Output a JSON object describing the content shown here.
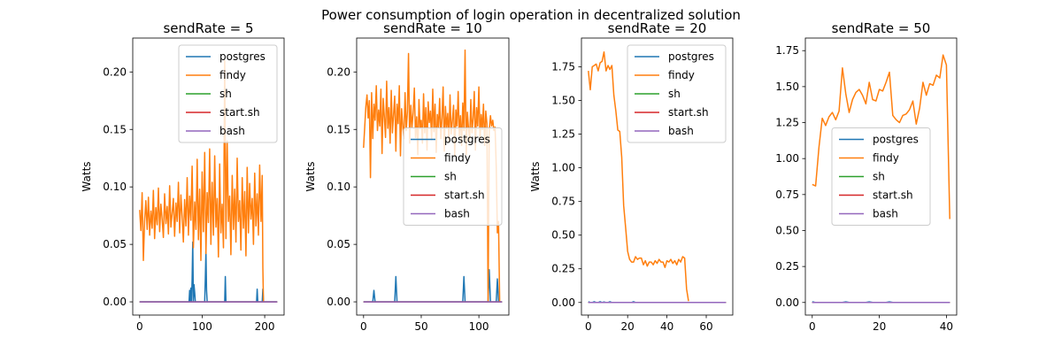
{
  "figure": {
    "suptitle": "Power consumption of login operation in decentralized solution"
  },
  "colors": {
    "postgres": "#1f77b4",
    "findy": "#ff7f0e",
    "sh": "#2ca02c",
    "start.sh": "#d62728",
    "bash": "#9467bd"
  },
  "chart_data": [
    {
      "type": "line",
      "title": "sendRate = 5",
      "xlabel": "",
      "ylabel": "Watts",
      "xlim": [
        -11,
        231
      ],
      "ylim": [
        -0.0115,
        0.2295
      ],
      "xticks": [
        0,
        100,
        200
      ],
      "yticks": [
        0.0,
        0.05,
        0.1,
        0.15,
        0.2
      ],
      "ytick_format": "2",
      "legend": {
        "placement": "upper right",
        "entries": [
          "postgres",
          "findy",
          "sh",
          "start.sh",
          "bash"
        ]
      },
      "series": [
        {
          "name": "postgres",
          "x": [
            0,
            79,
            80,
            81,
            82,
            83,
            84,
            85,
            86,
            87,
            88,
            89,
            104,
            105,
            106,
            107,
            108,
            136,
            137,
            138,
            187,
            188,
            189,
            196,
            197,
            198,
            199,
            220
          ],
          "y": [
            0,
            0,
            0.01,
            0,
            0.012,
            0,
            0.02,
            0.052,
            0,
            0.015,
            0.008,
            0,
            0,
            0.02,
            0.044,
            0.01,
            0,
            0,
            0.022,
            0,
            0,
            0.011,
            0,
            0,
            0.011,
            0,
            0,
            0
          ]
        },
        {
          "name": "findy",
          "x": [
            0,
            2,
            4,
            6,
            8,
            10,
            12,
            14,
            16,
            18,
            20,
            22,
            24,
            26,
            28,
            30,
            32,
            34,
            36,
            38,
            40,
            42,
            44,
            46,
            48,
            50,
            52,
            54,
            56,
            58,
            60,
            62,
            64,
            66,
            68,
            70,
            72,
            74,
            76,
            78,
            80,
            82,
            84,
            86,
            88,
            90,
            92,
            94,
            96,
            98,
            100,
            102,
            104,
            106,
            108,
            110,
            112,
            114,
            116,
            118,
            120,
            122,
            124,
            126,
            128,
            130,
            132,
            134,
            136,
            138,
            140,
            142,
            144,
            146,
            148,
            150,
            152,
            154,
            156,
            158,
            160,
            162,
            164,
            166,
            168,
            170,
            172,
            174,
            176,
            178,
            180,
            182,
            184,
            186,
            188,
            190,
            192,
            194,
            196,
            197,
            198
          ],
          "y": [
            0.08,
            0.062,
            0.095,
            0.036,
            0.07,
            0.088,
            0.063,
            0.091,
            0.058,
            0.079,
            0.064,
            0.097,
            0.055,
            0.082,
            0.067,
            0.099,
            0.061,
            0.085,
            0.072,
            0.056,
            0.094,
            0.068,
            0.083,
            0.059,
            0.101,
            0.065,
            0.077,
            0.09,
            0.057,
            0.086,
            0.07,
            0.104,
            0.06,
            0.093,
            0.074,
            0.052,
            0.089,
            0.066,
            0.108,
            0.058,
            0.092,
            0.071,
            0.118,
            0.047,
            0.087,
            0.063,
            0.124,
            0.054,
            0.098,
            0.036,
            0.113,
            0.061,
            0.13,
            0.042,
            0.095,
            0.069,
            0.133,
            0.05,
            0.104,
            0.058,
            0.127,
            0.065,
            0.09,
            0.039,
            0.12,
            0.06,
            0.085,
            0.047,
            0.21,
            0.055,
            0.14,
            0.07,
            0.092,
            0.041,
            0.11,
            0.063,
            0.098,
            0.052,
            0.125,
            0.07,
            0.088,
            0.045,
            0.108,
            0.064,
            0.096,
            0.04,
            0.117,
            0.06,
            0.103,
            0.072,
            0.09,
            0.05,
            0.112,
            0.066,
            0.094,
            0.058,
            0.119,
            0.07,
            0.11,
            0.03,
            0
          ]
        },
        {
          "name": "sh",
          "x": [
            0,
            220
          ],
          "y": [
            0,
            0
          ]
        },
        {
          "name": "start.sh",
          "x": [
            0,
            220
          ],
          "y": [
            0,
            0
          ]
        },
        {
          "name": "bash",
          "x": [
            0,
            220
          ],
          "y": [
            0,
            0
          ]
        }
      ]
    },
    {
      "type": "line",
      "title": "sendRate = 10",
      "xlabel": "",
      "ylabel": "Watts",
      "xlim": [
        -6,
        126
      ],
      "ylim": [
        -0.0115,
        0.2295
      ],
      "xticks": [
        0,
        50,
        100
      ],
      "yticks": [
        0.0,
        0.05,
        0.1,
        0.15,
        0.2
      ],
      "ytick_format": "2",
      "legend": {
        "placement": "center right",
        "entries": [
          "postgres",
          "findy",
          "sh",
          "start.sh",
          "bash"
        ]
      },
      "series": [
        {
          "name": "postgres",
          "x": [
            0,
            8,
            9,
            10,
            27,
            28,
            29,
            86,
            87,
            88,
            108,
            109,
            110,
            115,
            116,
            117,
            120
          ],
          "y": [
            0,
            0,
            0.01,
            0,
            0,
            0.022,
            0,
            0,
            0.022,
            0,
            0,
            0.028,
            0,
            0,
            0.02,
            0,
            0
          ]
        },
        {
          "name": "findy",
          "x": [
            0,
            1,
            2,
            3,
            4,
            5,
            6,
            7,
            8,
            9,
            10,
            11,
            12,
            13,
            14,
            15,
            16,
            17,
            18,
            19,
            20,
            21,
            22,
            23,
            24,
            25,
            26,
            27,
            28,
            29,
            30,
            31,
            32,
            33,
            34,
            35,
            36,
            37,
            38,
            39,
            40,
            41,
            42,
            43,
            44,
            45,
            46,
            47,
            48,
            49,
            50,
            51,
            52,
            53,
            54,
            55,
            56,
            57,
            58,
            59,
            60,
            61,
            62,
            63,
            64,
            65,
            66,
            67,
            68,
            69,
            70,
            71,
            72,
            73,
            74,
            75,
            76,
            77,
            78,
            79,
            80,
            81,
            82,
            83,
            84,
            85,
            86,
            87,
            88,
            89,
            90,
            91,
            92,
            93,
            94,
            95,
            96,
            97,
            98,
            99,
            100,
            101,
            102,
            103,
            104,
            105,
            106,
            107,
            108,
            109,
            110,
            111,
            112,
            113,
            114,
            115,
            116,
            117,
            118
          ],
          "y": [
            0.134,
            0.152,
            0.17,
            0.18,
            0.16,
            0.175,
            0.108,
            0.182,
            0.142,
            0.172,
            0.158,
            0.188,
            0.149,
            0.167,
            0.153,
            0.185,
            0.129,
            0.177,
            0.161,
            0.143,
            0.192,
            0.151,
            0.169,
            0.138,
            0.184,
            0.147,
            0.163,
            0.179,
            0.131,
            0.172,
            0.155,
            0.188,
            0.127,
            0.168,
            0.153,
            0.142,
            0.182,
            0.149,
            0.165,
            0.216,
            0.138,
            0.171,
            0.152,
            0.164,
            0.186,
            0.143,
            0.161,
            0.128,
            0.176,
            0.151,
            0.158,
            0.138,
            0.181,
            0.147,
            0.169,
            0.132,
            0.174,
            0.156,
            0.166,
            0.141,
            0.185,
            0.148,
            0.172,
            0.13,
            0.163,
            0.152,
            0.177,
            0.142,
            0.16,
            0.187,
            0.131,
            0.17,
            0.151,
            0.164,
            0.14,
            0.18,
            0.146,
            0.158,
            0.171,
            0.127,
            0.167,
            0.153,
            0.183,
            0.144,
            0.162,
            0.136,
            0.173,
            0.149,
            0.219,
            0.128,
            0.165,
            0.151,
            0.14,
            0.176,
            0.147,
            0.16,
            0.183,
            0.132,
            0.169,
            0.153,
            0.187,
            0.141,
            0.163,
            0.15,
            0.172,
            0.136,
            0.166,
            0.155,
            0,
            0.149,
            0.162,
            0.153,
            0.158,
            0.149,
            0.152,
            0.118,
            0.06,
            0.07,
            0
          ]
        },
        {
          "name": "sh",
          "x": [
            0,
            120
          ],
          "y": [
            0,
            0
          ]
        },
        {
          "name": "start.sh",
          "x": [
            0,
            120
          ],
          "y": [
            0,
            0
          ]
        },
        {
          "name": "bash",
          "x": [
            0,
            120
          ],
          "y": [
            0,
            0
          ]
        }
      ]
    },
    {
      "type": "line",
      "title": "sendRate = 20",
      "xlabel": "",
      "ylabel": "Watts",
      "xlim": [
        -3.5,
        73.5
      ],
      "ylim": [
        -0.0935,
        1.9635
      ],
      "xticks": [
        0,
        20,
        40,
        60
      ],
      "yticks": [
        0.0,
        0.25,
        0.5,
        0.75,
        1.0,
        1.25,
        1.5,
        1.75
      ],
      "ytick_format": "2",
      "legend": {
        "placement": "upper right",
        "entries": [
          "postgres",
          "findy",
          "sh",
          "start.sh",
          "bash"
        ]
      },
      "series": [
        {
          "name": "postgres",
          "x": [
            0,
            1,
            2,
            3,
            4,
            5,
            6,
            7,
            8,
            9,
            10,
            11,
            12,
            13,
            14,
            22,
            23,
            24,
            25,
            70
          ],
          "y": [
            0.005,
            0,
            0,
            0.005,
            0,
            0,
            0.006,
            0,
            0.004,
            0,
            0,
            0.005,
            0,
            0,
            0,
            0,
            0.006,
            0,
            0,
            0
          ]
        },
        {
          "name": "findy",
          "x": [
            0,
            1,
            2,
            3,
            4,
            5,
            6,
            7,
            8,
            9,
            10,
            11,
            12,
            13,
            14,
            15,
            16,
            17,
            18,
            19,
            20,
            21,
            22,
            23,
            24,
            25,
            26,
            27,
            28,
            29,
            30,
            31,
            32,
            33,
            34,
            35,
            36,
            37,
            38,
            39,
            40,
            41,
            42,
            43,
            44,
            45,
            46,
            47,
            48,
            49,
            50,
            51
          ],
          "y": [
            1.72,
            1.58,
            1.75,
            1.76,
            1.77,
            1.72,
            1.78,
            1.79,
            1.86,
            1.72,
            1.76,
            1.73,
            1.76,
            1.54,
            1.42,
            1.28,
            1.27,
            1.08,
            0.72,
            0.55,
            0.38,
            0.32,
            0.3,
            0.3,
            0.34,
            0.32,
            0.33,
            0.33,
            0.28,
            0.31,
            0.27,
            0.3,
            0.3,
            0.28,
            0.31,
            0.29,
            0.32,
            0.3,
            0.3,
            0.26,
            0.31,
            0.3,
            0.32,
            0.29,
            0.31,
            0.28,
            0.32,
            0.3,
            0.34,
            0.33,
            0.1,
            0.01
          ]
        },
        {
          "name": "sh",
          "x": [
            0,
            70
          ],
          "y": [
            0,
            0
          ]
        },
        {
          "name": "start.sh",
          "x": [
            0,
            70
          ],
          "y": [
            0,
            0
          ]
        },
        {
          "name": "bash",
          "x": [
            0,
            70
          ],
          "y": [
            0,
            0
          ]
        }
      ]
    },
    {
      "type": "line",
      "title": "sendRate = 50",
      "xlabel": "",
      "ylabel": "",
      "xlim": [
        -2.05,
        43.05
      ],
      "ylim": [
        -0.0875,
        1.8375
      ],
      "xticks": [
        0,
        20,
        40
      ],
      "yticks": [
        0.0,
        0.25,
        0.5,
        0.75,
        1.0,
        1.25,
        1.5,
        1.75
      ],
      "ytick_format": "2",
      "legend": {
        "placement": "center",
        "entries": [
          "postgres",
          "findy",
          "sh",
          "start.sh",
          "bash"
        ]
      },
      "series": [
        {
          "name": "postgres",
          "x": [
            0,
            1,
            2,
            9,
            10,
            11,
            16,
            17,
            18,
            22,
            23,
            24,
            41
          ],
          "y": [
            0.005,
            0,
            0,
            0,
            0.004,
            0,
            0,
            0.004,
            0,
            0,
            0.004,
            0,
            0
          ]
        },
        {
          "name": "findy",
          "x": [
            0,
            1,
            2,
            3,
            4,
            5,
            6,
            7,
            8,
            9,
            10,
            11,
            12,
            13,
            14,
            15,
            16,
            17,
            18,
            19,
            20,
            21,
            22,
            23,
            24,
            25,
            26,
            27,
            28,
            29,
            30,
            31,
            32,
            33,
            34,
            35,
            36,
            37,
            38,
            39,
            40,
            41
          ],
          "y": [
            0.82,
            0.81,
            1.08,
            1.28,
            1.23,
            1.29,
            1.32,
            1.27,
            1.33,
            1.63,
            1.45,
            1.32,
            1.41,
            1.46,
            1.48,
            1.44,
            1.38,
            1.53,
            1.41,
            1.4,
            1.48,
            1.47,
            1.53,
            1.6,
            1.3,
            1.27,
            1.25,
            1.3,
            1.31,
            1.34,
            1.4,
            1.24,
            1.35,
            1.53,
            1.44,
            1.52,
            1.51,
            1.58,
            1.56,
            1.72,
            1.65,
            0.58
          ]
        },
        {
          "name": "sh",
          "x": [
            0,
            41
          ],
          "y": [
            0,
            0
          ]
        },
        {
          "name": "start.sh",
          "x": [
            0,
            41
          ],
          "y": [
            0,
            0
          ]
        },
        {
          "name": "bash",
          "x": [
            0,
            41
          ],
          "y": [
            0,
            0
          ]
        }
      ]
    }
  ]
}
